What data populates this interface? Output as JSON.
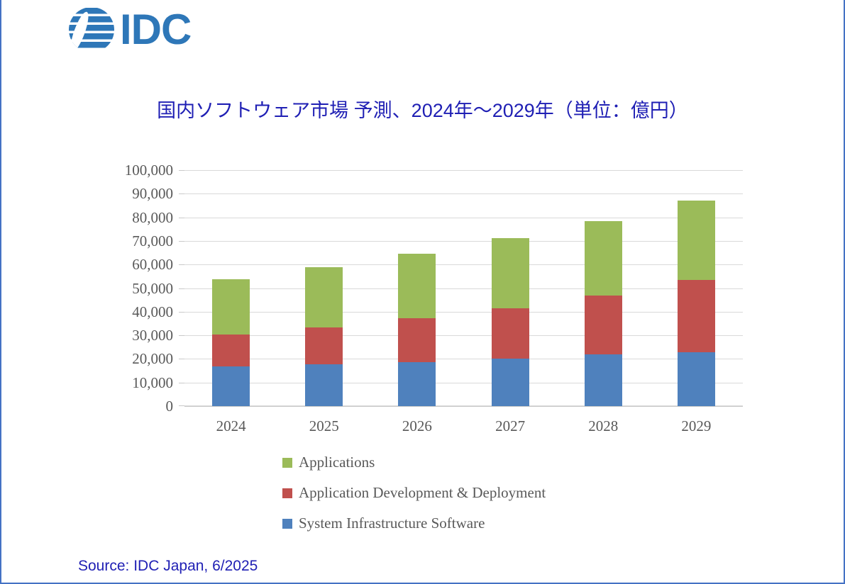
{
  "logo": {
    "text": "IDC",
    "color": "#2E77B8"
  },
  "title": "国内ソフトウェア市場 予測、2024年～2029年（単位：億円）",
  "source": "Source: IDC Japan, 6/2025",
  "colors": {
    "title_blue": "#1F1FB4",
    "border_blue": "#4472C4",
    "logo_blue": "#2E77B8",
    "gridline_gray": "#D9D9D9",
    "axis_text_gray": "#595959"
  },
  "chart_data": {
    "type": "bar",
    "stacked": true,
    "title": "国内ソフトウェア市場 予測、2024年～2029年（単位：億円）",
    "xlabel": "",
    "ylabel": "",
    "categories": [
      "2024",
      "2025",
      "2026",
      "2027",
      "2028",
      "2029"
    ],
    "series": [
      {
        "name": "System Infrastructure Software",
        "color": "#4F81BD",
        "values": [
          16800,
          17600,
          18700,
          20100,
          21800,
          22900
        ]
      },
      {
        "name": "Application Development & Deployment",
        "color": "#C0504D",
        "values": [
          13400,
          15600,
          18600,
          21400,
          25200,
          30500
        ]
      },
      {
        "name": "Applications",
        "color": "#9BBB59",
        "values": [
          23500,
          25700,
          27300,
          29800,
          31300,
          33700
        ]
      }
    ],
    "totals": [
      53700,
      58900,
      64600,
      71300,
      78300,
      87100
    ],
    "ylim": [
      0,
      100000
    ],
    "ytick_step": 10000,
    "ytick_labels": [
      "0",
      "10,000",
      "20,000",
      "30,000",
      "40,000",
      "50,000",
      "60,000",
      "70,000",
      "80,000",
      "90,000",
      "100,000"
    ],
    "grid": true,
    "legend_position": "bottom",
    "legend_order_top_to_bottom": [
      "Applications",
      "Application Development & Deployment",
      "System Infrastructure Software"
    ]
  }
}
